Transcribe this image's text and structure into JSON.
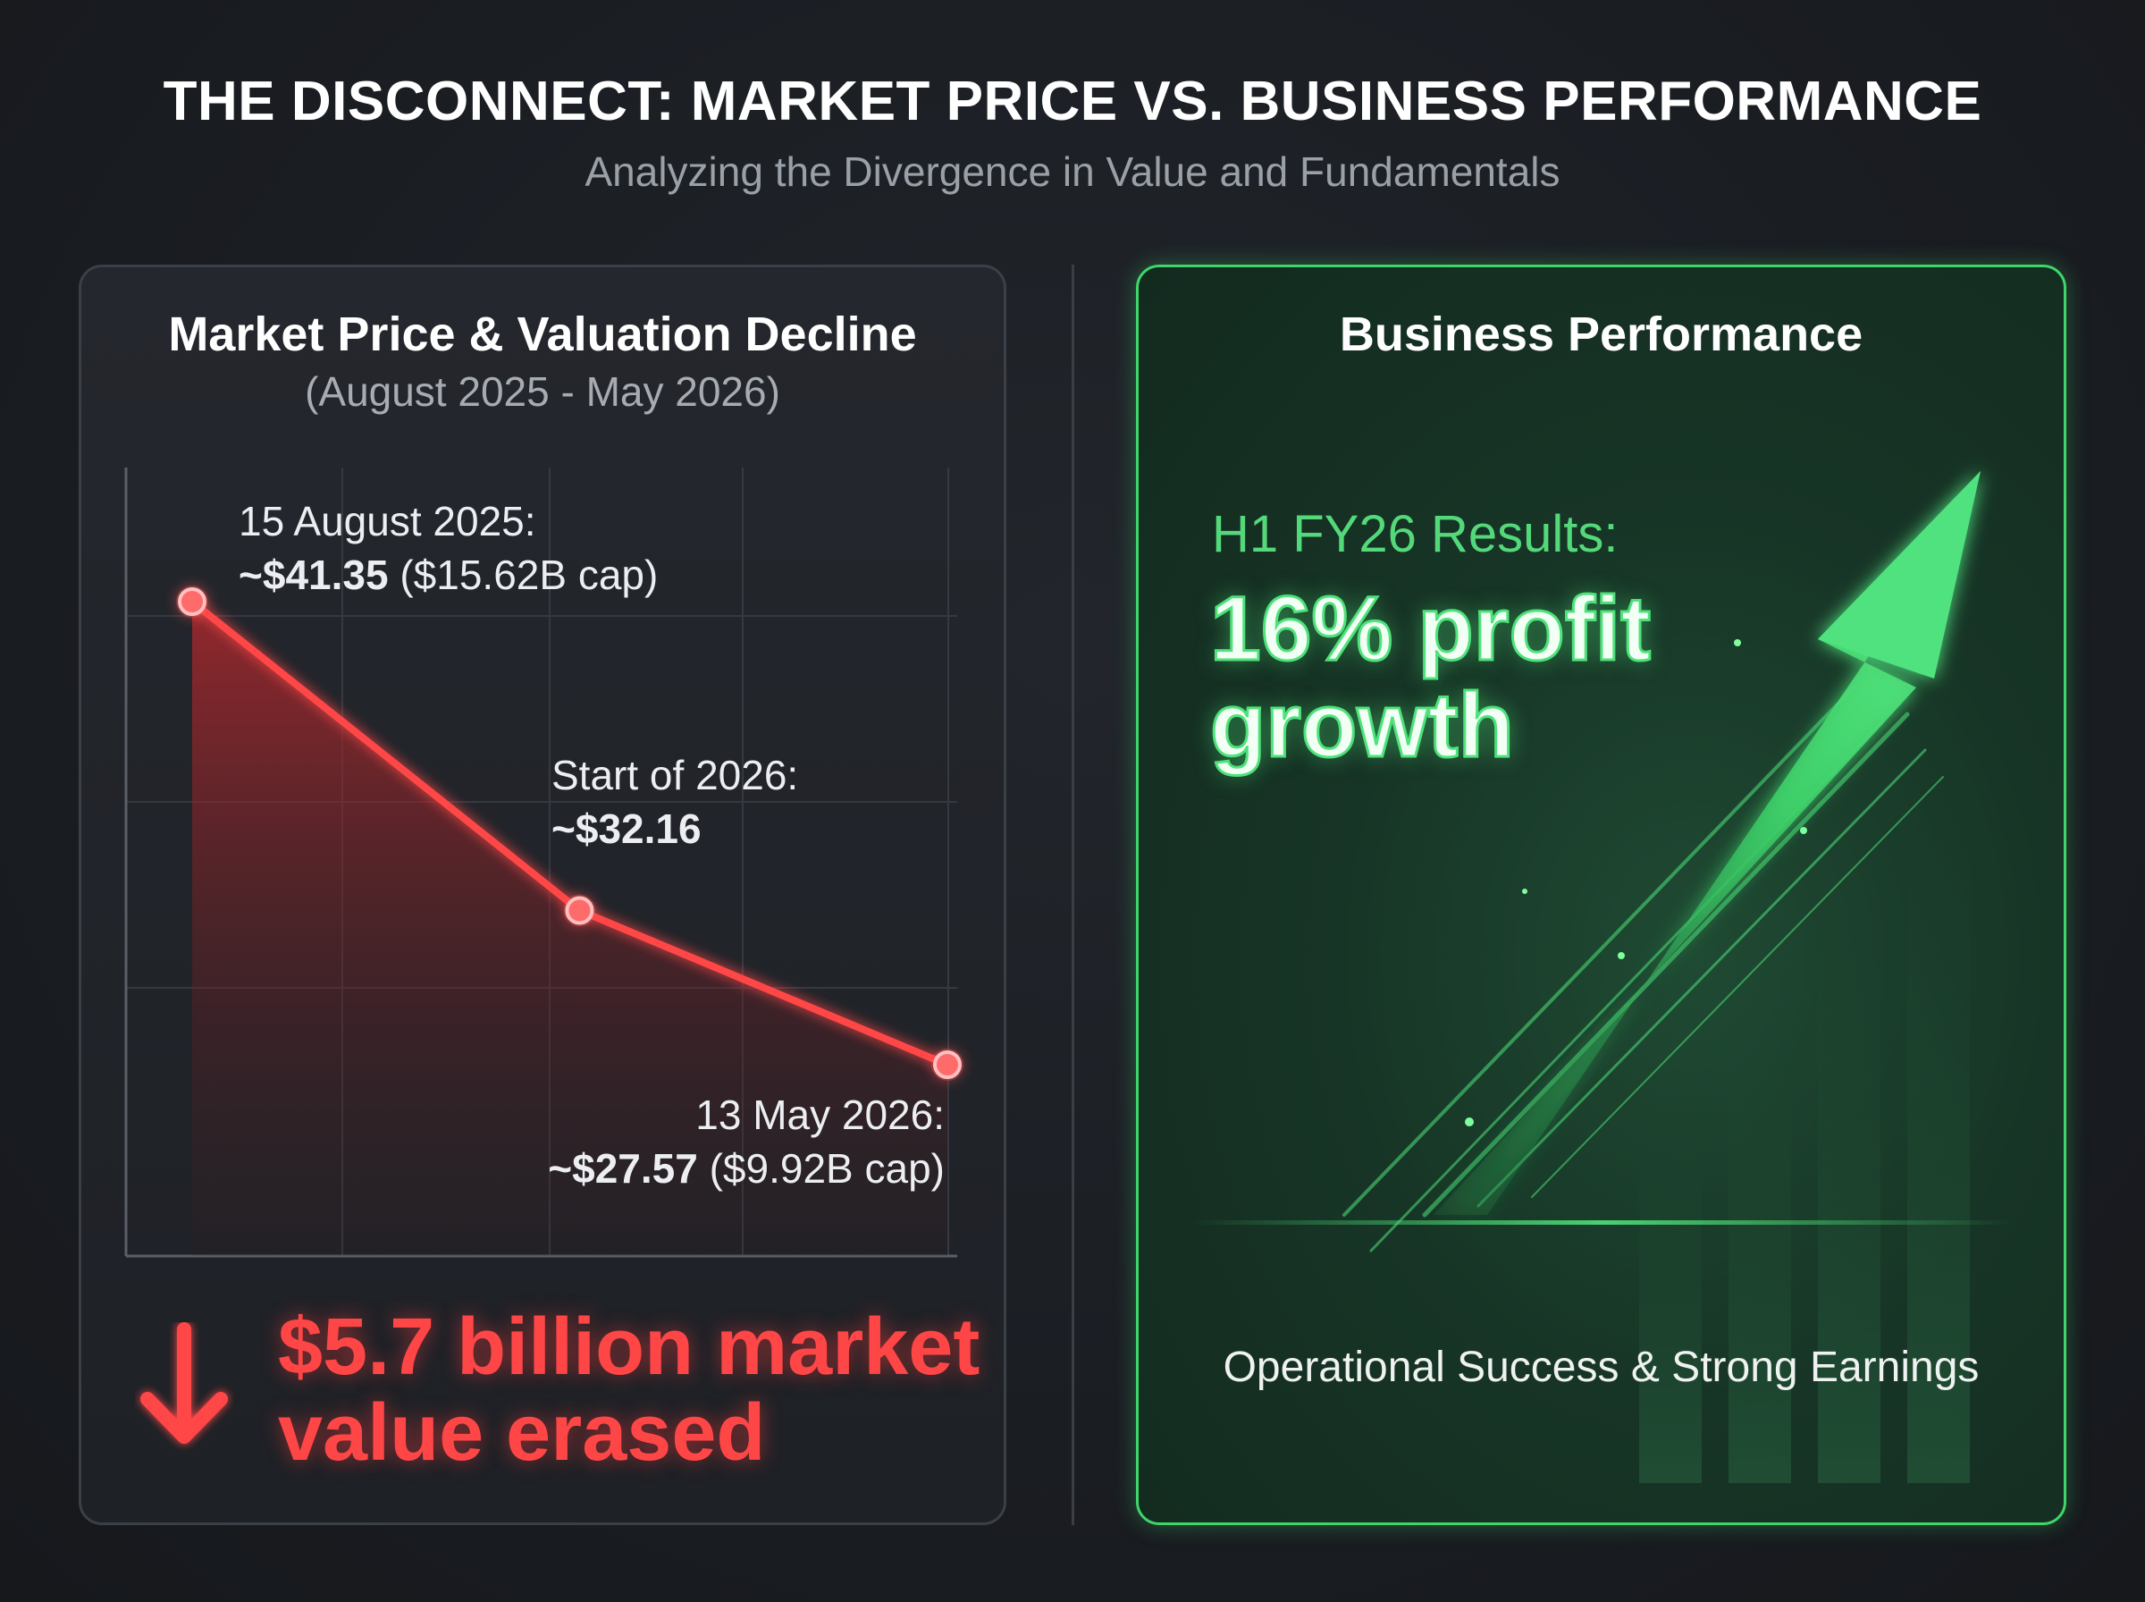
{
  "header": {
    "title": "THE DISCONNECT: MARKET PRICE VS. BUSINESS PERFORMANCE",
    "subtitle": "Analyzing the Divergence in Value and Fundamentals"
  },
  "left_panel": {
    "title": "Market Price & Valuation Decline",
    "range": "(August 2025 - May 2026)",
    "loss_text": "$5.7 billion market value erased",
    "loss_icon": "down-arrow-icon"
  },
  "right_panel": {
    "title": "Business Performance",
    "results_label": "H1 FY26 Results:",
    "headline": "16% profit growth",
    "footer": "Operational Success & Strong Earnings",
    "icon": "up-trend-arrow-icon"
  },
  "colors": {
    "decline_red": "#ff4646",
    "growth_green": "#4ee27a",
    "background": "#1a1d22"
  },
  "chart_data": {
    "type": "line",
    "title": "Market Price & Valuation Decline",
    "subtitle": "(August 2025 - May 2026)",
    "x": [
      "2025-08-15",
      "2026-01-01",
      "2026-05-13"
    ],
    "series": [
      {
        "values": [
          41.35,
          32.16,
          27.57
        ]
      }
    ],
    "annotations": [
      {
        "date": "15 August 2025:",
        "price": "~$41.35",
        "cap": "($15.62B cap)"
      },
      {
        "date": "Start of 2026:",
        "price": "~$32.16",
        "cap": ""
      },
      {
        "date": "13 May 2026:",
        "price": "~$27.57",
        "cap": "($9.92B cap)"
      }
    ],
    "grid": true,
    "fill": "area under line"
  }
}
